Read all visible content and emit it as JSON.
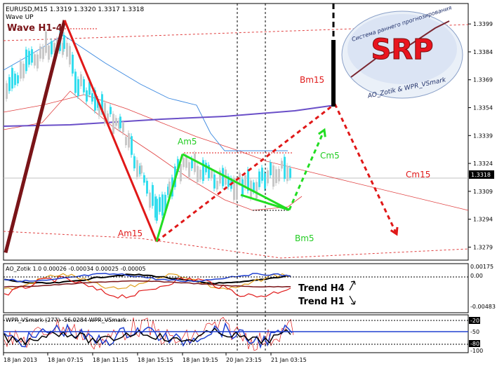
{
  "header": {
    "symbol_line": "EURUSD,M15  1.3319 1.3320 1.3317 1.3318",
    "indicator_line": "Wave UP"
  },
  "logo": {
    "text": "SRP",
    "arc_text": "Система раннего прогнозирования",
    "bottom_text": "AO_Zotik & WPR_VSmark"
  },
  "labels": {
    "wave": "Wave H1-4",
    "am5": "Am5",
    "am15": "Am15",
    "bm15": "Bm15",
    "bm5": "Bm5",
    "cm5": "Cm5",
    "cm15": "Cm15",
    "trend_h4": "Trend H4",
    "trend_h1": "Trend H1"
  },
  "subpanels": {
    "ao_title": "AO_Zotik 1.0  0.00026 -0.00034 0.00025 -0.00005",
    "wpr_title": "WPR_VSmark  (277) -56.0284  WPR_VSmark"
  },
  "colors": {
    "background": "#ffffff",
    "up_candles": "#33ddee",
    "down_candles": "#c8c8c8",
    "impulse": "#7a1418",
    "bear_wave": "#e01818",
    "projection": "#e01818",
    "green_wave": "#22dd22",
    "purple_line": "#6a4fc8",
    "price_tag": "#000000"
  },
  "chart_data": [
    {
      "type": "candlestick",
      "title": "EURUSD,M15",
      "y_ticks": [
        "1.3399",
        "1.3384",
        "1.3369",
        "1.3354",
        "1.3339",
        "1.3324",
        "1.3309",
        "1.3294",
        "1.3279"
      ],
      "ylim": [
        1.3272,
        1.341
      ],
      "x_ticks": [
        "18 Jan 2013",
        "18 Jan 07:15",
        "18 Jan 11:15",
        "18 Jan 15:15",
        "18 Jan 19:15",
        "20 Jan 23:15",
        "21 Jan 03:15"
      ],
      "last_price": "1.3318",
      "wave_points": [
        {
          "label": "",
          "price": 1.3276
        },
        {
          "label": "Wave H1-4",
          "price": 1.3401
        },
        {
          "label": "Am15",
          "price": 1.3282
        },
        {
          "label": "Am5",
          "price": 1.3329
        },
        {
          "label": "Bm5",
          "price": 1.3299
        },
        {
          "label": "Cm5",
          "price": 1.3342
        },
        {
          "label": "Bm15",
          "price": 1.3356
        },
        {
          "label": "Cm15",
          "price": 1.3286
        }
      ]
    },
    {
      "type": "line",
      "title": "AO_Zotik",
      "y_ticks": [
        "0.00175",
        "0.00",
        "-0.00483"
      ]
    },
    {
      "type": "line",
      "title": "WPR_VSmark",
      "y_ticks": [
        "-20",
        "-50",
        "-80",
        "-100"
      ]
    }
  ]
}
